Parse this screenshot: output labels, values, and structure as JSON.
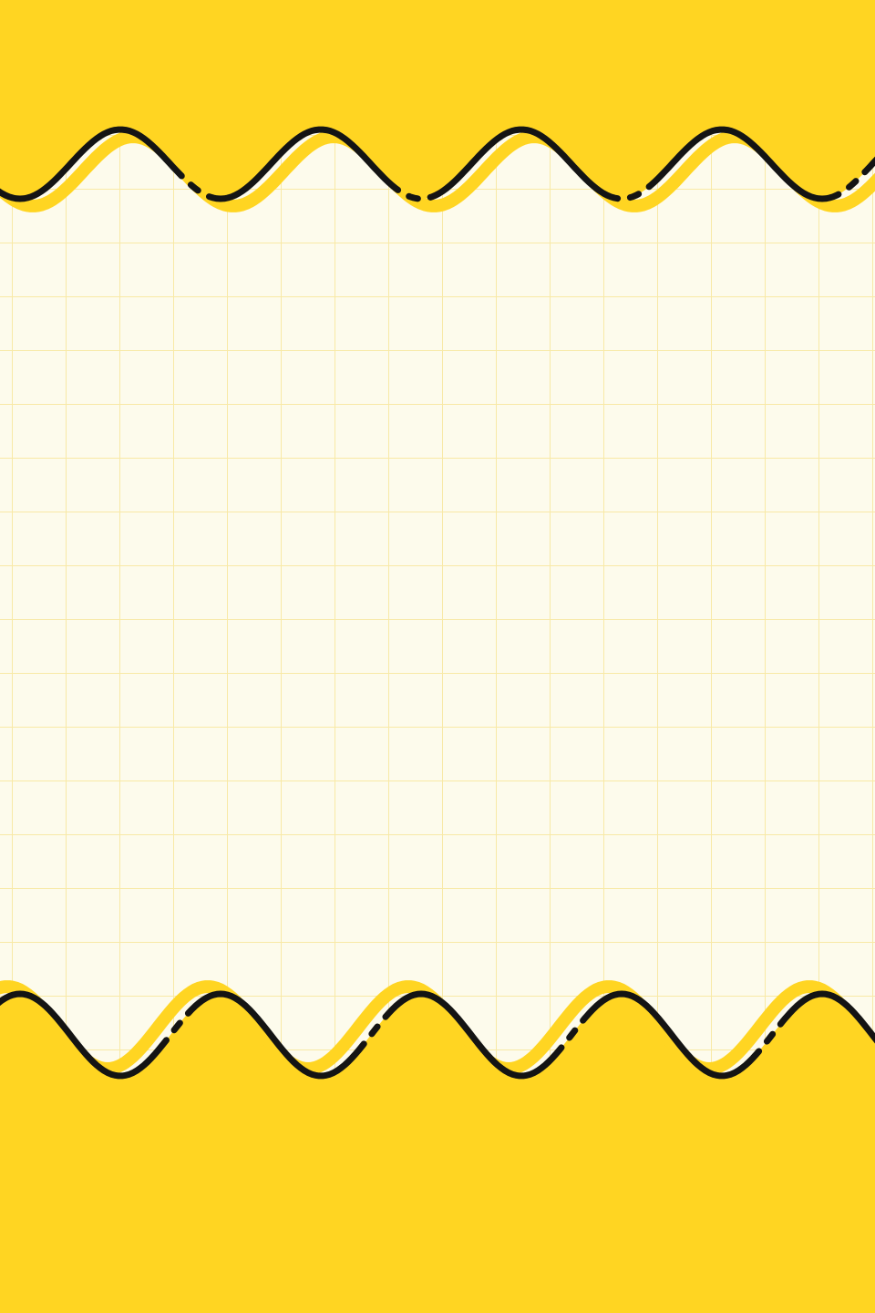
{
  "palette": {
    "background": "#FFD522",
    "paper": "#FDFBEC",
    "grid_line": "#F8E9A6",
    "wave_outline": "#141414",
    "wave_shadow": "#FFD522"
  },
  "decor": {
    "top_border": "wavy-line",
    "bottom_border": "wavy-line",
    "paper_pattern": "grid"
  }
}
